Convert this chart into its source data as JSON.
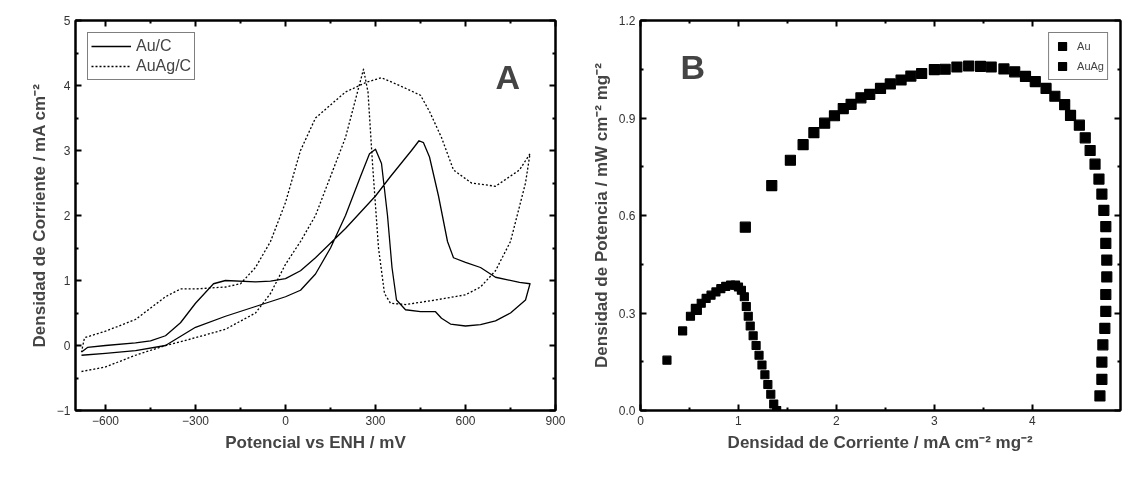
{
  "chart_data": [
    {
      "type": "line",
      "xlabel": "Potencial vs ENH / mV",
      "ylabel": "Densidad de Corriente / mA cm⁻²",
      "xlim": [
        -700,
        900
      ],
      "xticks": [
        -600,
        -300,
        0,
        300,
        600,
        900
      ],
      "ylim": [
        -1,
        5
      ],
      "yticks": [
        -1,
        0,
        1,
        2,
        3,
        4,
        5
      ],
      "grid": false,
      "legend": "top left",
      "annotations": [
        "A"
      ],
      "series": [
        {
          "name": "Au/C",
          "color": "#000000",
          "line_style": "solid",
          "x": [
            -680,
            -600,
            -500,
            -400,
            -300,
            -200,
            -100,
            0,
            50,
            100,
            150,
            200,
            250,
            280,
            300,
            320,
            340,
            355,
            370,
            400,
            450,
            500,
            520,
            550,
            600,
            650,
            700,
            750,
            800,
            815,
            780,
            700,
            650,
            600,
            560,
            540,
            510,
            480,
            460,
            445,
            420,
            350,
            300,
            200,
            100,
            50,
            0,
            -50,
            -100,
            -200,
            -240,
            -300,
            -350,
            -400,
            -450,
            -500,
            -600,
            -660,
            -680
          ],
          "values": [
            -0.15,
            -0.12,
            -0.08,
            0.0,
            0.28,
            0.45,
            0.6,
            0.75,
            0.85,
            1.1,
            1.5,
            2.0,
            2.6,
            2.95,
            3.02,
            2.8,
            2.0,
            1.2,
            0.7,
            0.55,
            0.52,
            0.52,
            0.42,
            0.33,
            0.3,
            0.32,
            0.38,
            0.5,
            0.7,
            0.95,
            0.97,
            1.05,
            1.2,
            1.28,
            1.35,
            1.6,
            2.3,
            2.9,
            3.12,
            3.15,
            3.0,
            2.6,
            2.3,
            1.8,
            1.35,
            1.15,
            1.03,
            0.99,
            0.98,
            1.0,
            0.95,
            0.65,
            0.35,
            0.15,
            0.07,
            0.04,
            0.0,
            -0.03,
            -0.1
          ]
        },
        {
          "name": "AuAg/C",
          "color": "#000000",
          "line_style": "dotted",
          "x": [
            -680,
            -600,
            -500,
            -400,
            -300,
            -200,
            -100,
            -50,
            0,
            50,
            100,
            150,
            200,
            240,
            260,
            275,
            290,
            310,
            330,
            350,
            400,
            500,
            600,
            650,
            700,
            750,
            800,
            815,
            780,
            700,
            620,
            560,
            520,
            480,
            450,
            380,
            320,
            270,
            200,
            100,
            50,
            0,
            -50,
            -100,
            -150,
            -200,
            -300,
            -350,
            -400,
            -500,
            -600,
            -670,
            -680
          ],
          "values": [
            -0.4,
            -0.33,
            -0.15,
            0.0,
            0.12,
            0.25,
            0.5,
            0.8,
            1.25,
            1.6,
            2.0,
            2.6,
            3.2,
            3.9,
            4.25,
            3.9,
            2.8,
            1.5,
            0.8,
            0.65,
            0.63,
            0.7,
            0.78,
            0.9,
            1.15,
            1.6,
            2.5,
            2.95,
            2.7,
            2.45,
            2.5,
            2.7,
            3.2,
            3.6,
            3.85,
            4.0,
            4.12,
            4.05,
            3.9,
            3.5,
            3.0,
            2.2,
            1.6,
            1.2,
            0.95,
            0.9,
            0.87,
            0.87,
            0.75,
            0.4,
            0.22,
            0.12,
            -0.1
          ]
        }
      ]
    },
    {
      "type": "scatter",
      "xlabel": "Densidad de Corriente / mA cm⁻² mg⁻²",
      "ylabel": "Densidad de Potencia / mW cm⁻² mg⁻²",
      "xlim": [
        0,
        4.9
      ],
      "xticks": [
        0,
        1,
        2,
        3,
        4
      ],
      "ylim": [
        0,
        1.2
      ],
      "yticks": [
        {
          "value": 0,
          "label": "0.0"
        },
        0.3,
        0.6,
        0.9,
        1.2
      ],
      "grid": false,
      "legend": "top right",
      "marker": "square",
      "annotations": [
        "B"
      ],
      "series": [
        {
          "name": "Au",
          "color": "#000000",
          "x": [
            0.27,
            0.43,
            0.51,
            0.62,
            0.67,
            0.72,
            0.77,
            0.82,
            0.87,
            0.92,
            0.97,
            1.0,
            1.03,
            1.06,
            1.08,
            1.1,
            1.12,
            1.15,
            1.18,
            1.21,
            1.24,
            1.27,
            1.3,
            1.33,
            1.36,
            1.39
          ],
          "values": [
            0.155,
            0.245,
            0.29,
            0.33,
            0.345,
            0.355,
            0.365,
            0.375,
            0.382,
            0.386,
            0.386,
            0.38,
            0.37,
            0.35,
            0.32,
            0.29,
            0.26,
            0.23,
            0.2,
            0.17,
            0.14,
            0.11,
            0.08,
            0.05,
            0.02,
            0.0
          ]
        },
        {
          "name": "AuAg",
          "color": "#000000",
          "x": [
            0.57,
            1.07,
            1.34,
            1.53,
            1.66,
            1.77,
            1.88,
            1.98,
            2.07,
            2.15,
            2.25,
            2.34,
            2.45,
            2.55,
            2.66,
            2.76,
            2.87,
            3.0,
            3.11,
            3.23,
            3.35,
            3.47,
            3.58,
            3.71,
            3.82,
            3.93,
            4.03,
            4.14,
            4.23,
            4.33,
            4.39,
            4.48,
            4.54,
            4.59,
            4.64,
            4.68,
            4.71,
            4.73,
            4.75,
            4.75,
            4.76,
            4.76,
            4.75,
            4.75,
            4.74,
            4.72,
            4.71,
            4.71,
            4.69
          ],
          "values": [
            0.311,
            0.564,
            0.692,
            0.77,
            0.818,
            0.855,
            0.884,
            0.907,
            0.929,
            0.942,
            0.962,
            0.973,
            0.991,
            1.005,
            1.017,
            1.029,
            1.037,
            1.049,
            1.05,
            1.057,
            1.06,
            1.059,
            1.057,
            1.051,
            1.042,
            1.028,
            1.012,
            0.991,
            0.967,
            0.941,
            0.908,
            0.878,
            0.839,
            0.8,
            0.758,
            0.712,
            0.666,
            0.616,
            0.566,
            0.514,
            0.463,
            0.411,
            0.357,
            0.305,
            0.253,
            0.202,
            0.149,
            0.096,
            0.045
          ]
        }
      ]
    }
  ]
}
